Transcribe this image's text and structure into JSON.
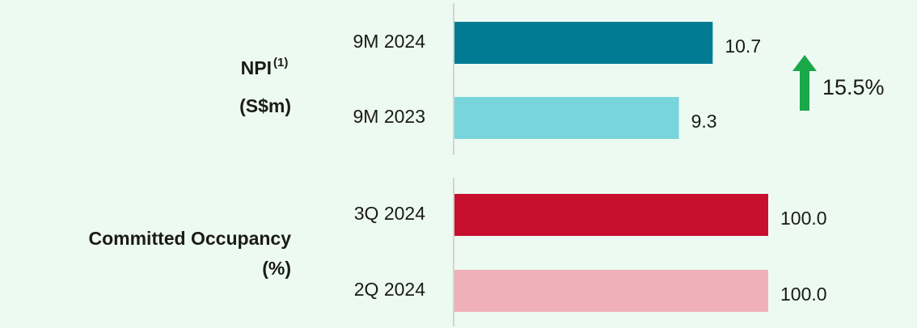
{
  "chart_data": [
    {
      "type": "bar",
      "orientation": "horizontal",
      "title": "NPI",
      "title_note": "(1)",
      "unit": "(S$m)",
      "categories": [
        "9M 2024",
        "9M 2023"
      ],
      "values": [
        10.7,
        9.3
      ],
      "colors": [
        "#007b93",
        "#78d5db"
      ],
      "xlim": [
        0,
        13
      ],
      "annotation": "15.5%",
      "annotation_color": "#1aa84a"
    },
    {
      "type": "bar",
      "orientation": "horizontal",
      "title": "Committed Occupancy",
      "unit": "(%)",
      "categories": [
        "3Q 2024",
        "2Q 2024"
      ],
      "values": [
        100,
        100
      ],
      "value_labels": [
        "100.0",
        "100.0"
      ],
      "colors": [
        "#c8102e",
        "#efb0b8"
      ],
      "xlim": [
        0,
        100
      ]
    }
  ]
}
